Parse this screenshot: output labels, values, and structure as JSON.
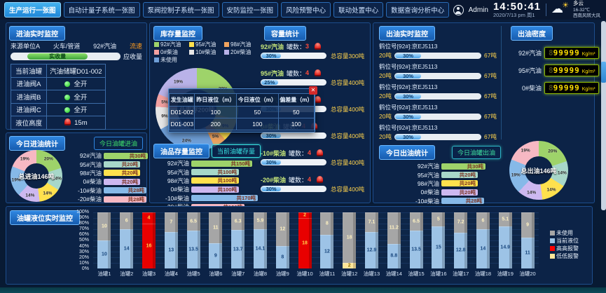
{
  "header": {
    "tabs": [
      {
        "label": "生产运行一张图",
        "active": true
      },
      {
        "label": "自动计量子系统一张图",
        "active": false
      },
      {
        "label": "泵阀控制子系统一张图",
        "active": false
      },
      {
        "label": "安防监控一张图",
        "active": false
      },
      {
        "label": "风险预警中心",
        "active": false
      },
      {
        "label": "联动处置中心",
        "active": false
      },
      {
        "label": "数据查询分析中心",
        "active": false
      }
    ],
    "user": "Admin",
    "time": "14:50:41",
    "date_line": "2020/7/13 pm 周1",
    "weather": {
      "summary": "多云",
      "temp": "16-32℃",
      "wind": "西南风转大风"
    }
  },
  "inlet": {
    "title": "进油实时监控",
    "flow": [
      "来源单位A",
      "火车/管道",
      "92#汽油",
      "流速"
    ],
    "received_label": "实收量",
    "expected_label": "应收量",
    "rows": [
      {
        "label": "当前油罐",
        "value": "汽油储罐D01-002",
        "icon": "none"
      },
      {
        "label": "进油阀A",
        "value": "全开",
        "icon": "green-dot"
      },
      {
        "label": "进油阀B",
        "value": "全开",
        "icon": "green-dot"
      },
      {
        "label": "进油阀C",
        "value": "全开",
        "icon": "green-dot"
      },
      {
        "label": "液位高度",
        "value": "15m",
        "icon": "alarm"
      }
    ]
  },
  "inlet_stats": {
    "title": "今日进油统计",
    "button": "今日油罐进油"
  },
  "inventory": {
    "title": "库存量监控"
  },
  "capacity": {
    "title": "容量统计"
  },
  "stock": {
    "title": "油品存量监控",
    "button": "当前油罐存量"
  },
  "popup": {
    "headers": [
      "发生油罐",
      "昨日液位（m）",
      "今日液位（m）",
      "偏差量（m）"
    ],
    "rows": [
      [
        "D01-002",
        "100",
        "50",
        "50"
      ],
      [
        "D01-003",
        "200",
        "100",
        "100"
      ]
    ],
    "close": "✕"
  },
  "outlet": {
    "title": "出油实时监控",
    "rows": [
      {
        "label": "鹤位号[92#]:京EJ5113",
        "left": "20吨",
        "percent": "30%",
        "right": "67吨"
      },
      {
        "label": "鹤位号[92#]:京EJ5113",
        "left": "20吨",
        "percent": "30%",
        "right": "67吨"
      },
      {
        "label": "鹤位号[92#]:京EJ5113",
        "left": "20吨",
        "percent": "30%",
        "right": "67吨"
      },
      {
        "label": "鹤位号[92#]:京EJ5113",
        "left": "20吨",
        "percent": "30%",
        "right": "67吨"
      },
      {
        "label": "鹤位号[92#]:京EJ5113",
        "left": "20吨",
        "percent": "30%",
        "right": "67吨"
      }
    ]
  },
  "density": {
    "title": "出油密度",
    "rows": [
      {
        "label": "92#汽油",
        "dim": "8",
        "value": "99999",
        "unit": "Kg/m³"
      },
      {
        "label": "95#汽油",
        "dim": "8",
        "value": "99999",
        "unit": "Kg/m³"
      },
      {
        "label": "0#柴油",
        "dim": "8",
        "value": "99999",
        "unit": "Kg/m³"
      }
    ]
  },
  "outlet_stats": {
    "title": "今日出油统计",
    "button": "今日油罐出油"
  },
  "tank_panel": {
    "title": "油罐液位实时监控",
    "y_ticks": [
      "100%",
      "90%",
      "80%",
      "70%",
      "60%",
      "50%",
      "40%",
      "30%",
      "20%",
      "10%",
      "0%"
    ],
    "legend": [
      {
        "label": "未使用",
        "color": "#a6a6a6"
      },
      {
        "label": "当前液位",
        "color": "#9dc3e6"
      },
      {
        "label": "高高报警",
        "color": "#ff0000"
      },
      {
        "label": "低低报警",
        "color": "#ffe699"
      }
    ]
  },
  "chart_data": [
    {
      "id": "inlet_donut",
      "type": "pie",
      "title": "今日进油统计",
      "center_label": "总进油146吨",
      "unit": "吨",
      "segments": [
        {
          "label": "92#汽油",
          "value": 30,
          "pct": 20,
          "color": "#9ed36a",
          "amount": "共30吨"
        },
        {
          "label": "95#汽油",
          "value": 20,
          "pct": 14,
          "color": "#a7d7c9",
          "amount": "共20吨"
        },
        {
          "label": "98#汽油",
          "value": 20,
          "pct": 14,
          "color": "#ffe14d",
          "amount": "共20吨"
        },
        {
          "label": "0#柴油",
          "value": 20,
          "pct": 14,
          "color": "#cdb8f0",
          "amount": "共20吨"
        },
        {
          "label": "-10#柴油",
          "value": 28,
          "pct": 19,
          "color": "#86b9e8",
          "amount": "共28吨"
        },
        {
          "label": "-20#柴油",
          "value": 28,
          "pct": 19,
          "color": "#f6b8c3",
          "amount": "共28吨"
        }
      ]
    },
    {
      "id": "inventory_donut",
      "type": "pie",
      "title": "库存量监控",
      "center_label": "总库存200吨",
      "segments": [
        {
          "label": "92#汽油",
          "pct": 29,
          "color": "#9ed36a"
        },
        {
          "label": "95#汽油",
          "pct": 9,
          "color": "#ffe14d"
        },
        {
          "label": "98#汽油",
          "pct": 5,
          "color": "#f0a35e"
        },
        {
          "label": "未使用",
          "pct": 24,
          "color": "#6f9fd8"
        },
        {
          "label": "10#柴油",
          "pct": 9,
          "color": "#e6e6e6"
        },
        {
          "label": "0#柴油",
          "pct": 5,
          "color": "#f2a0a0"
        },
        {
          "label": "20#柴油",
          "pct": 19,
          "color": "#b9b2e8"
        }
      ],
      "legend": [
        {
          "label": "92#汽油",
          "color": "#9ed36a"
        },
        {
          "label": "95#汽油",
          "color": "#ffe14d"
        },
        {
          "label": "98#汽油",
          "color": "#f0a35e"
        },
        {
          "label": "0#柴油",
          "color": "#f2a0a0"
        },
        {
          "label": "10#柴油",
          "color": "#e6e6e6"
        },
        {
          "label": "20#柴油",
          "color": "#b9b2e8"
        },
        {
          "label": "未使用",
          "color": "#6f9fd8"
        }
      ]
    },
    {
      "id": "outlet_donut",
      "type": "pie",
      "title": "今日出油统计",
      "center_label": "总出油146吨",
      "unit": "吨",
      "segments": [
        {
          "label": "92#汽油",
          "value": 30,
          "pct": 20,
          "color": "#9ed36a",
          "amount": "共30吨"
        },
        {
          "label": "95#汽油",
          "value": 20,
          "pct": 14,
          "color": "#a7d7c9",
          "amount": "共20吨"
        },
        {
          "label": "98#汽油",
          "value": 20,
          "pct": 14,
          "color": "#ffe14d",
          "amount": "共20吨"
        },
        {
          "label": "0#柴油",
          "value": 20,
          "pct": 14,
          "color": "#cdb8f0",
          "amount": "共20吨"
        },
        {
          "label": "-10#柴油",
          "value": 28,
          "pct": 19,
          "color": "#86b9e8",
          "amount": "共28吨"
        },
        {
          "label": "-20#柴油",
          "value": 28,
          "pct": 19,
          "color": "#f6b8c3",
          "amount": "共28吨"
        }
      ]
    },
    {
      "id": "stock_bars",
      "type": "bar",
      "title": "油品存量监控",
      "unit": "吨",
      "rows": [
        {
          "label": "92#汽油",
          "value": 150,
          "amount": "共150吨",
          "color": "#9ed36a"
        },
        {
          "label": "95#汽油",
          "value": 100,
          "amount": "共100吨",
          "color": "#a7d7c9"
        },
        {
          "label": "98#汽油",
          "value": 100,
          "amount": "共100吨",
          "color": "#ffe14d"
        },
        {
          "label": "0#柴油",
          "value": 100,
          "amount": "共100吨",
          "color": "#cdb8f0"
        },
        {
          "label": "-10#柴油",
          "value": 170,
          "amount": "共170吨",
          "color": "#86b9e8"
        },
        {
          "label": "-20#柴油",
          "value": 120,
          "amount": "共120吨",
          "color": "#f6b8c3"
        }
      ]
    },
    {
      "id": "capacity_stats",
      "type": "table",
      "title": "容量统计",
      "count_label": "罐数：",
      "rows": [
        {
          "label": "92#汽油",
          "count": "3",
          "percent": "30%",
          "total": "总容量300吨"
        },
        {
          "label": "95#汽油",
          "count": "4",
          "percent": "25%",
          "total": "总容量400吨"
        },
        {
          "label": "98#汽油",
          "count": "3",
          "percent": "30%",
          "total": "总容量400吨"
        },
        {
          "label": "0#柴油",
          "count": "4",
          "percent": "30%",
          "total": "总容量400吨"
        },
        {
          "label": "-10#柴油",
          "count": "4",
          "percent": "30%",
          "total": "总容量400吨"
        },
        {
          "label": "-20#柴油",
          "count": "4",
          "percent": "30%",
          "total": "总容量400吨"
        }
      ]
    },
    {
      "id": "tank_levels",
      "type": "bar",
      "title": "油罐液位实时监控",
      "ylim": [
        0,
        100
      ],
      "full_scale": 20,
      "tanks": [
        {
          "name": "油罐1",
          "current": 10,
          "unused": 10,
          "state": "normal"
        },
        {
          "name": "油罐2",
          "current": 14,
          "unused": 6,
          "state": "normal"
        },
        {
          "name": "油罐3",
          "current": 16,
          "unused": 4,
          "state": "high"
        },
        {
          "name": "油罐4",
          "current": 13,
          "unused": 7,
          "state": "normal"
        },
        {
          "name": "油罐5",
          "current": 13.5,
          "unused": 6.5,
          "state": "normal"
        },
        {
          "name": "油罐6",
          "current": 9,
          "unused": 11,
          "state": "normal"
        },
        {
          "name": "油罐7",
          "current": 13.7,
          "unused": 6.3,
          "state": "normal"
        },
        {
          "name": "油罐8",
          "current": 14.1,
          "unused": 5.9,
          "state": "normal"
        },
        {
          "name": "油罐9",
          "current": 8,
          "unused": 12,
          "state": "normal"
        },
        {
          "name": "油罐10",
          "current": 18,
          "unused": 2,
          "state": "high"
        },
        {
          "name": "油罐11",
          "current": 12,
          "unused": 8,
          "state": "normal"
        },
        {
          "name": "油罐12",
          "current": 2,
          "unused": 18,
          "state": "low"
        },
        {
          "name": "油罐13",
          "current": 12.9,
          "unused": 7.1,
          "state": "normal"
        },
        {
          "name": "油罐14",
          "current": 8.8,
          "unused": 11.2,
          "state": "normal"
        },
        {
          "name": "油罐15",
          "current": 13.5,
          "unused": 6.5,
          "state": "normal"
        },
        {
          "name": "油罐16",
          "current": 15,
          "unused": 5,
          "state": "normal"
        },
        {
          "name": "油罐17",
          "current": 12.8,
          "unused": 7.2,
          "state": "normal"
        },
        {
          "name": "油罐18",
          "current": 14,
          "unused": 6,
          "state": "normal"
        },
        {
          "name": "油罐19",
          "current": 14.9,
          "unused": 5.1,
          "state": "normal"
        },
        {
          "name": "油罐20",
          "current": 11,
          "unused": 9,
          "state": "normal"
        }
      ]
    }
  ]
}
